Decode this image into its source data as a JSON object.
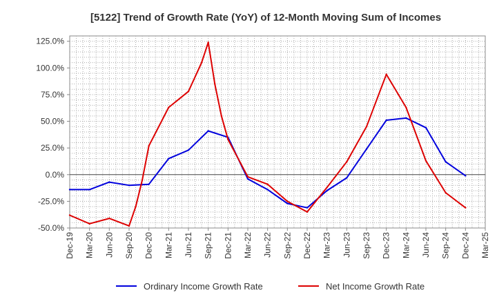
{
  "chart_data": {
    "type": "line",
    "title": "[5122]  Trend of Growth Rate (YoY) of 12-Month Moving Sum of Incomes",
    "xlabel": "",
    "ylabel": "",
    "ylim": [
      -50,
      130
    ],
    "y_ticks": [
      "125.0%",
      "100.0%",
      "75.0%",
      "50.0%",
      "25.0%",
      "0.0%",
      "-25.0%",
      "-50.0%"
    ],
    "y_tick_values": [
      125,
      100,
      75,
      50,
      25,
      0,
      -25,
      -50
    ],
    "x_tick_labels": [
      "Dec-19",
      "Mar-20",
      "Jun-20",
      "Sep-20",
      "Dec-20",
      "Mar-21",
      "Jun-21",
      "Sep-21",
      "Dec-21",
      "Mar-22",
      "Jun-22",
      "Sep-22",
      "Dec-22",
      "Mar-23",
      "Jun-23",
      "Sep-23",
      "Dec-23",
      "Mar-24",
      "Jun-24",
      "Sep-24",
      "Dec-24",
      "Mar-25"
    ],
    "grid": true,
    "legend_position": "bottom",
    "series": [
      {
        "name": "Ordinary Income Growth Rate",
        "color": "#0000dd",
        "x": [
          "Dec-19",
          "Mar-20",
          "Jun-20",
          "Sep-20",
          "Dec-20",
          "Mar-21",
          "Jun-21",
          "Sep-21",
          "Dec-21",
          "Mar-22",
          "Jun-22",
          "Sep-22",
          "Dec-22",
          "Mar-23",
          "Jun-23",
          "Sep-23",
          "Dec-23",
          "Mar-24",
          "Jun-24",
          "Sep-24",
          "Dec-24"
        ],
        "values": [
          -14,
          -14,
          -7,
          -10,
          -9,
          15,
          23,
          41,
          35,
          -4,
          -14,
          -27,
          -31,
          -15,
          -3,
          24,
          51,
          53,
          44,
          12,
          -1
        ]
      },
      {
        "name": "Net Income Growth Rate",
        "color": "#dd0000",
        "x": [
          "Dec-19",
          "Mar-20",
          "Jun-20",
          "Sep-20",
          "Oct-20",
          "Nov-20",
          "Dec-20",
          "Mar-21",
          "Jun-21",
          "Aug-21",
          "Sep-21",
          "Oct-21",
          "Nov-21",
          "Dec-21",
          "Mar-22",
          "Jun-22",
          "Sep-22",
          "Dec-22",
          "Mar-23",
          "Jun-23",
          "Sep-23",
          "Dec-23",
          "Mar-24",
          "Jun-24",
          "Sep-24",
          "Dec-24"
        ],
        "values": [
          -38,
          -46,
          -41,
          -48,
          -30,
          -5,
          27,
          63,
          78,
          105,
          124,
          85,
          55,
          33,
          -2,
          -9,
          -25,
          -35,
          -12,
          12,
          45,
          94,
          63,
          13,
          -17,
          -31
        ]
      }
    ]
  }
}
